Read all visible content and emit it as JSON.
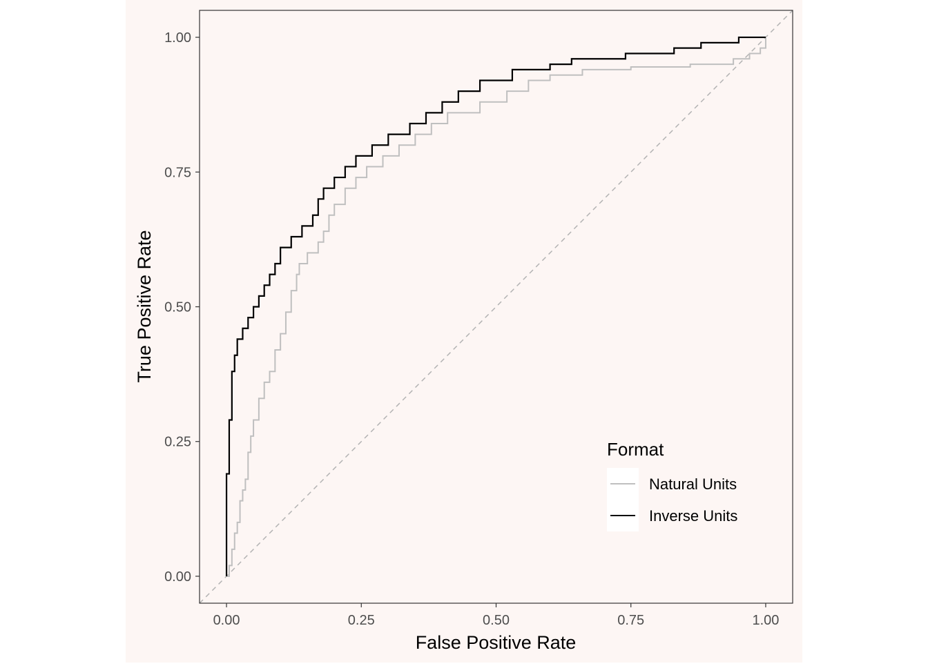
{
  "chart_data": {
    "type": "line",
    "title": "",
    "xlabel": "False Positive Rate",
    "ylabel": "True Positive Rate",
    "xlim": [
      -0.05,
      1.05
    ],
    "ylim": [
      -0.05,
      1.05
    ],
    "x_ticks": [
      0.0,
      0.25,
      0.5,
      0.75,
      1.0
    ],
    "x_tick_labels": [
      "0.00",
      "0.25",
      "0.50",
      "0.75",
      "1.00"
    ],
    "y_ticks": [
      0.0,
      0.25,
      0.5,
      0.75,
      1.0
    ],
    "y_tick_labels": [
      "0.00",
      "0.25",
      "0.50",
      "0.75",
      "1.00"
    ],
    "grid": false,
    "reference_line": {
      "style": "dashed",
      "color": "#b3b3b3",
      "points": [
        [
          -0.05,
          -0.05
        ],
        [
          1.05,
          1.05
        ]
      ]
    },
    "legend": {
      "title": "Format",
      "position": "bottom-right",
      "entries": [
        {
          "label": "Natural Units",
          "color": "#bfbfbf"
        },
        {
          "label": "Inverse Units",
          "color": "#000000"
        }
      ]
    },
    "background_color": "#fdf6f4",
    "series": [
      {
        "name": "Natural Units",
        "color": "#bfbfbf",
        "points": [
          [
            0.0,
            0.0
          ],
          [
            0.005,
            0.0
          ],
          [
            0.005,
            0.02
          ],
          [
            0.01,
            0.02
          ],
          [
            0.01,
            0.05
          ],
          [
            0.015,
            0.05
          ],
          [
            0.015,
            0.08
          ],
          [
            0.02,
            0.08
          ],
          [
            0.02,
            0.1
          ],
          [
            0.025,
            0.1
          ],
          [
            0.025,
            0.14
          ],
          [
            0.03,
            0.14
          ],
          [
            0.03,
            0.16
          ],
          [
            0.035,
            0.16
          ],
          [
            0.035,
            0.18
          ],
          [
            0.04,
            0.18
          ],
          [
            0.04,
            0.23
          ],
          [
            0.045,
            0.23
          ],
          [
            0.045,
            0.26
          ],
          [
            0.05,
            0.26
          ],
          [
            0.05,
            0.29
          ],
          [
            0.06,
            0.29
          ],
          [
            0.06,
            0.33
          ],
          [
            0.07,
            0.33
          ],
          [
            0.07,
            0.36
          ],
          [
            0.08,
            0.36
          ],
          [
            0.08,
            0.38
          ],
          [
            0.09,
            0.38
          ],
          [
            0.09,
            0.42
          ],
          [
            0.1,
            0.42
          ],
          [
            0.1,
            0.45
          ],
          [
            0.11,
            0.45
          ],
          [
            0.11,
            0.49
          ],
          [
            0.12,
            0.49
          ],
          [
            0.12,
            0.53
          ],
          [
            0.13,
            0.53
          ],
          [
            0.13,
            0.56
          ],
          [
            0.135,
            0.56
          ],
          [
            0.135,
            0.58
          ],
          [
            0.15,
            0.58
          ],
          [
            0.15,
            0.6
          ],
          [
            0.17,
            0.6
          ],
          [
            0.17,
            0.62
          ],
          [
            0.18,
            0.62
          ],
          [
            0.18,
            0.64
          ],
          [
            0.19,
            0.64
          ],
          [
            0.19,
            0.67
          ],
          [
            0.2,
            0.67
          ],
          [
            0.2,
            0.69
          ],
          [
            0.22,
            0.69
          ],
          [
            0.22,
            0.72
          ],
          [
            0.24,
            0.72
          ],
          [
            0.24,
            0.74
          ],
          [
            0.26,
            0.74
          ],
          [
            0.26,
            0.76
          ],
          [
            0.29,
            0.76
          ],
          [
            0.29,
            0.78
          ],
          [
            0.32,
            0.78
          ],
          [
            0.32,
            0.8
          ],
          [
            0.35,
            0.8
          ],
          [
            0.35,
            0.82
          ],
          [
            0.38,
            0.82
          ],
          [
            0.38,
            0.84
          ],
          [
            0.41,
            0.84
          ],
          [
            0.41,
            0.86
          ],
          [
            0.47,
            0.86
          ],
          [
            0.47,
            0.88
          ],
          [
            0.52,
            0.88
          ],
          [
            0.52,
            0.9
          ],
          [
            0.56,
            0.9
          ],
          [
            0.56,
            0.92
          ],
          [
            0.6,
            0.92
          ],
          [
            0.6,
            0.93
          ],
          [
            0.66,
            0.93
          ],
          [
            0.66,
            0.94
          ],
          [
            0.75,
            0.94
          ],
          [
            0.75,
            0.945
          ],
          [
            0.86,
            0.945
          ],
          [
            0.86,
            0.95
          ],
          [
            0.94,
            0.95
          ],
          [
            0.94,
            0.96
          ],
          [
            0.97,
            0.96
          ],
          [
            0.97,
            0.97
          ],
          [
            0.99,
            0.97
          ],
          [
            0.99,
            0.98
          ],
          [
            1.0,
            0.98
          ],
          [
            1.0,
            1.0
          ]
        ]
      },
      {
        "name": "Inverse Units",
        "color": "#000000",
        "points": [
          [
            0.0,
            0.0
          ],
          [
            0.0,
            0.19
          ],
          [
            0.005,
            0.19
          ],
          [
            0.005,
            0.29
          ],
          [
            0.01,
            0.29
          ],
          [
            0.01,
            0.38
          ],
          [
            0.015,
            0.38
          ],
          [
            0.015,
            0.41
          ],
          [
            0.02,
            0.41
          ],
          [
            0.02,
            0.44
          ],
          [
            0.03,
            0.44
          ],
          [
            0.03,
            0.46
          ],
          [
            0.04,
            0.46
          ],
          [
            0.04,
            0.48
          ],
          [
            0.05,
            0.48
          ],
          [
            0.05,
            0.5
          ],
          [
            0.06,
            0.5
          ],
          [
            0.06,
            0.52
          ],
          [
            0.07,
            0.52
          ],
          [
            0.07,
            0.54
          ],
          [
            0.08,
            0.54
          ],
          [
            0.08,
            0.56
          ],
          [
            0.09,
            0.56
          ],
          [
            0.09,
            0.58
          ],
          [
            0.1,
            0.58
          ],
          [
            0.1,
            0.61
          ],
          [
            0.12,
            0.61
          ],
          [
            0.12,
            0.63
          ],
          [
            0.14,
            0.63
          ],
          [
            0.14,
            0.65
          ],
          [
            0.16,
            0.65
          ],
          [
            0.16,
            0.67
          ],
          [
            0.17,
            0.67
          ],
          [
            0.17,
            0.7
          ],
          [
            0.18,
            0.7
          ],
          [
            0.18,
            0.72
          ],
          [
            0.2,
            0.72
          ],
          [
            0.2,
            0.74
          ],
          [
            0.22,
            0.74
          ],
          [
            0.22,
            0.76
          ],
          [
            0.24,
            0.76
          ],
          [
            0.24,
            0.78
          ],
          [
            0.27,
            0.78
          ],
          [
            0.27,
            0.8
          ],
          [
            0.3,
            0.8
          ],
          [
            0.3,
            0.82
          ],
          [
            0.34,
            0.82
          ],
          [
            0.34,
            0.84
          ],
          [
            0.37,
            0.84
          ],
          [
            0.37,
            0.86
          ],
          [
            0.4,
            0.86
          ],
          [
            0.4,
            0.88
          ],
          [
            0.43,
            0.88
          ],
          [
            0.43,
            0.9
          ],
          [
            0.47,
            0.9
          ],
          [
            0.47,
            0.92
          ],
          [
            0.53,
            0.92
          ],
          [
            0.53,
            0.94
          ],
          [
            0.6,
            0.94
          ],
          [
            0.6,
            0.95
          ],
          [
            0.64,
            0.95
          ],
          [
            0.64,
            0.96
          ],
          [
            0.74,
            0.96
          ],
          [
            0.74,
            0.97
          ],
          [
            0.83,
            0.97
          ],
          [
            0.83,
            0.98
          ],
          [
            0.88,
            0.98
          ],
          [
            0.88,
            0.99
          ],
          [
            0.95,
            0.99
          ],
          [
            0.95,
            1.0
          ],
          [
            1.0,
            1.0
          ]
        ]
      }
    ]
  }
}
